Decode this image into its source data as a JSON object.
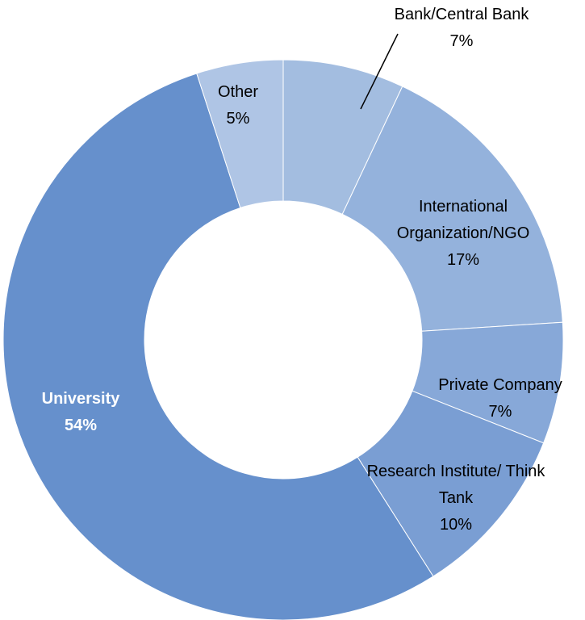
{
  "chart_data": {
    "type": "donut",
    "categories": [
      "Bank/Central Bank",
      "International Organization/NGO",
      "Private Company",
      "Research Institute/ Think Tank",
      "University",
      "Other"
    ],
    "values": [
      7,
      17,
      7,
      10,
      54,
      5
    ],
    "value_labels": [
      "7%",
      "17%",
      "7%",
      "10%",
      "54%",
      "5%"
    ],
    "colors": [
      "#a3bde0",
      "#94b2dc",
      "#87a8d8",
      "#7a9ed3",
      "#6690cc",
      "#afc5e5"
    ]
  }
}
